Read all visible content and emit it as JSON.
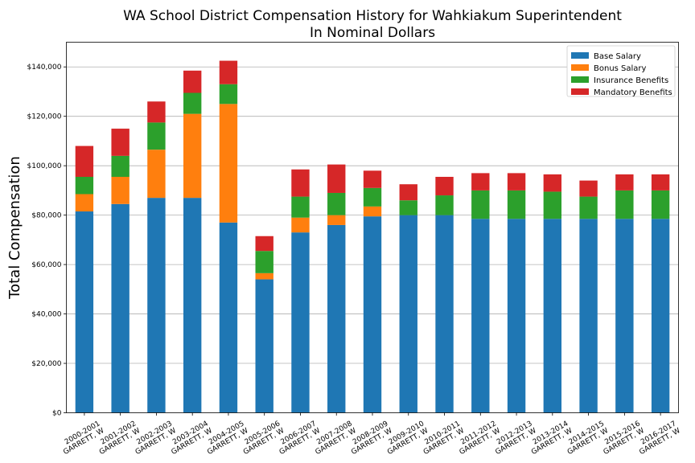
{
  "chart_data": {
    "type": "bar",
    "stacked": true,
    "title": "WA School District Compensation History for Wahkiakum Superintendent",
    "subtitle": "In Nominal Dollars",
    "ylabel": "Total Compensation",
    "xlabel": "",
    "ylim": [
      0,
      150000
    ],
    "yticks": [
      0,
      20000,
      40000,
      60000,
      80000,
      100000,
      120000,
      140000
    ],
    "ytick_labels": [
      "$0",
      "$20,000",
      "$40,000",
      "$60,000",
      "$80,000",
      "$100,000",
      "$120,000",
      "$140,000"
    ],
    "grid": true,
    "legend_position": "top-right",
    "categories": [
      [
        "2000-2001",
        "GARRETT, W"
      ],
      [
        "2001-2002",
        "GARRETT, W"
      ],
      [
        "2002-2003",
        "GARRETT, W"
      ],
      [
        "2003-2004",
        "GARRETT, W"
      ],
      [
        "2004-2005",
        "GARRETT, W"
      ],
      [
        "2005-2006",
        "GARRETT, W"
      ],
      [
        "2006-2007",
        "GARRETT, W"
      ],
      [
        "2007-2008",
        "GARRETT, W"
      ],
      [
        "2008-2009",
        "GARRETT, W"
      ],
      [
        "2009-2010",
        "GARRETT, W"
      ],
      [
        "2010-2011",
        "GARRETT, W"
      ],
      [
        "2011-2012",
        "GARRETT, W"
      ],
      [
        "2012-2013",
        "GARRETT, W"
      ],
      [
        "2013-2014",
        "GARRETT, W"
      ],
      [
        "2014-2015",
        "GARRETT, W"
      ],
      [
        "2015-2016",
        "GARRETT, W"
      ],
      [
        "2016-2017",
        "GARRETT, W"
      ]
    ],
    "series": [
      {
        "name": "Base Salary",
        "color": "#1f77b4",
        "values": [
          81500,
          84500,
          87000,
          87000,
          77000,
          54000,
          73000,
          76000,
          79500,
          80000,
          80000,
          78500,
          78500,
          78500,
          78500,
          78500,
          78500
        ]
      },
      {
        "name": "Bonus Salary",
        "color": "#ff7f0e",
        "values": [
          7000,
          11000,
          19500,
          34000,
          48000,
          2500,
          6000,
          4000,
          4000,
          0,
          0,
          0,
          0,
          0,
          0,
          0,
          0
        ]
      },
      {
        "name": "Insurance Benefits",
        "color": "#2ca02c",
        "values": [
          7000,
          8500,
          11000,
          8500,
          8000,
          9000,
          8500,
          9000,
          7500,
          6000,
          8000,
          11500,
          11500,
          11000,
          9000,
          11500,
          11500
        ]
      },
      {
        "name": "Mandatory Benefits",
        "color": "#d62728",
        "values": [
          12500,
          11000,
          8500,
          9000,
          9500,
          6000,
          11000,
          11500,
          7000,
          6500,
          7500,
          7000,
          7000,
          7000,
          6500,
          6500,
          6500
        ]
      }
    ]
  }
}
